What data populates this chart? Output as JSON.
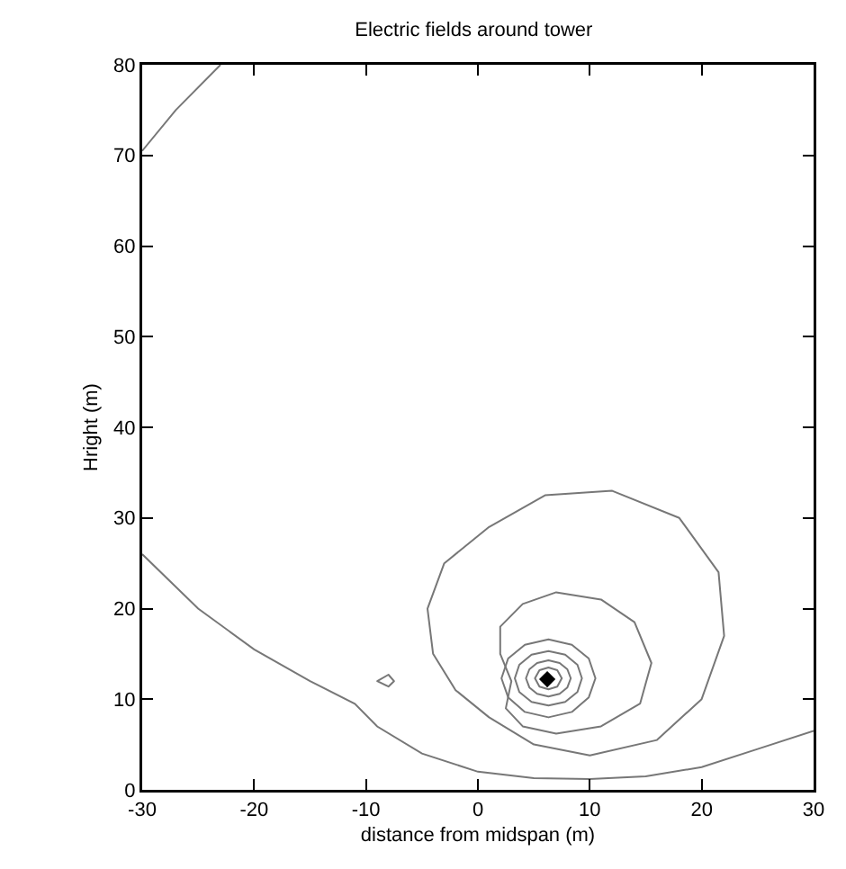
{
  "chart_data": {
    "type": "line",
    "title": "Electric fields around tower",
    "xlabel": "distance from midspan (m)",
    "ylabel": "Hright (m)",
    "xlim": [
      -30,
      30
    ],
    "xticks": [
      -30,
      -20,
      -10,
      0,
      10,
      20,
      30
    ],
    "ylim": [
      0,
      80
    ],
    "yticks": [
      0,
      10,
      20,
      30,
      40,
      50,
      60,
      70,
      80
    ],
    "grid": false,
    "line_style": "solid",
    "series": [
      {
        "color": "#777777",
        "x": [
          -30,
          -25,
          -20,
          -15,
          -11,
          -9,
          -5,
          0,
          5,
          10,
          15,
          20,
          25,
          30
        ],
        "values": [
          26,
          20,
          15.5,
          12,
          9.5,
          7,
          4,
          2,
          1.3,
          1.2,
          1.5,
          2.5,
          4.5,
          6.5
        ]
      },
      {
        "color": "#777777",
        "x": [
          -30,
          -27,
          -23
        ],
        "values": [
          70.5,
          75,
          80
        ]
      },
      {
        "type": "scatter",
        "marker": "diamond",
        "color": "#000000",
        "x": [
          6.2
        ],
        "values": [
          12.2
        ]
      }
    ]
  }
}
